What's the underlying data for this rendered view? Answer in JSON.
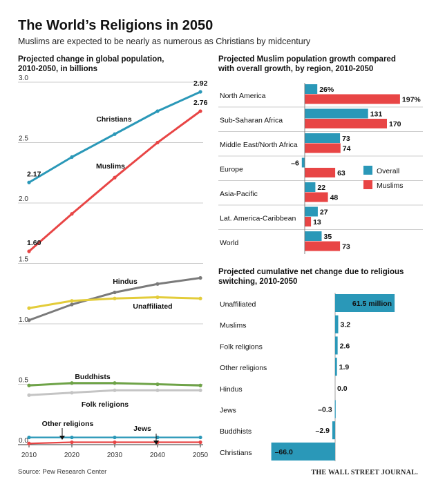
{
  "header": {
    "title": "The World’s Religions in 2050",
    "subtitle": "Muslims are expected to be nearly as numerous as Christians by midcentury"
  },
  "footer": {
    "source": "Source: Pew Research Center",
    "brand": "THE WALL STREET JOURNAL."
  },
  "colors": {
    "blue": "#2a98b8",
    "red": "#e84545",
    "gray": "#7a7a7a",
    "yellow": "#e3cc3a",
    "green": "#6ea347",
    "light_gray": "#c4c4c4",
    "teal_dark": "#1e90a6"
  },
  "chart_data": [
    {
      "type": "line",
      "title": "Projected change in global population, 2010-2050, in billions",
      "x": [
        2010,
        2020,
        2030,
        2040,
        2050
      ],
      "ylim": [
        0,
        3.0
      ],
      "yticks": [
        "0.0",
        "0.5",
        "1.0",
        "1.5",
        "2.0",
        "2.5",
        "3.0"
      ],
      "xticks": [
        "2010",
        "2020",
        "2030",
        "2040",
        "2050"
      ],
      "series": [
        {
          "name": "Christians",
          "values": [
            2.17,
            2.38,
            2.57,
            2.76,
            2.92
          ],
          "color": "#2a98b8",
          "start_label": "2.17",
          "end_label": "2.92"
        },
        {
          "name": "Muslims",
          "values": [
            1.6,
            1.91,
            2.21,
            2.5,
            2.76
          ],
          "color": "#e84545",
          "start_label": "1.60",
          "end_label": "2.76"
        },
        {
          "name": "Hindus",
          "values": [
            1.03,
            1.16,
            1.26,
            1.33,
            1.38
          ],
          "color": "#7a7a7a"
        },
        {
          "name": "Unaffiliated",
          "values": [
            1.13,
            1.19,
            1.21,
            1.22,
            1.21
          ],
          "color": "#e3cc3a"
        },
        {
          "name": "Buddhists",
          "values": [
            0.49,
            0.51,
            0.51,
            0.5,
            0.49
          ],
          "color": "#6ea347"
        },
        {
          "name": "Folk religions",
          "values": [
            0.41,
            0.43,
            0.45,
            0.45,
            0.45
          ],
          "color": "#c4c4c4"
        },
        {
          "name": "Other religions",
          "values": [
            0.06,
            0.06,
            0.06,
            0.06,
            0.06
          ],
          "color": "#2a98b8"
        },
        {
          "name": "Jews",
          "values": [
            0.01,
            0.02,
            0.02,
            0.02,
            0.02
          ],
          "color": "#e84545"
        }
      ]
    },
    {
      "type": "bar",
      "title": "Projected Muslim population growth compared with overall growth, by region, 2010-2050",
      "categories": [
        "North America",
        "Sub-Saharan Africa",
        "Middle East/North Africa",
        "Europe",
        "Asia-Pacific",
        "Lat. America-Caribbean",
        "World"
      ],
      "series": [
        {
          "name": "Overall",
          "values": [
            26,
            131,
            73,
            -6,
            22,
            27,
            35
          ],
          "color": "#2a98b8",
          "labels": [
            "26%",
            "131",
            "73",
            "–6",
            "22",
            "27",
            "35"
          ]
        },
        {
          "name": "Muslims",
          "values": [
            197,
            170,
            74,
            63,
            48,
            13,
            73
          ],
          "color": "#e84545",
          "labels": [
            "197%",
            "170",
            "74",
            "63",
            "48",
            "13",
            "73"
          ]
        }
      ],
      "legend": "right"
    },
    {
      "type": "bar",
      "title": "Projected cumulative net change due to religious switching, 2010-2050",
      "categories": [
        "Unaffiliated",
        "Muslims",
        "Folk religions",
        "Other religions",
        "Hindus",
        "Jews",
        "Buddhists",
        "Christians"
      ],
      "values": [
        61.5,
        3.2,
        2.6,
        1.9,
        0.0,
        -0.3,
        -2.9,
        -66.0
      ],
      "labels": [
        "61.5 million",
        "3.2",
        "2.6",
        "1.9",
        "0.0",
        "–0.3",
        "–2.9",
        "–66.0"
      ],
      "color": "#2a98b8"
    }
  ]
}
